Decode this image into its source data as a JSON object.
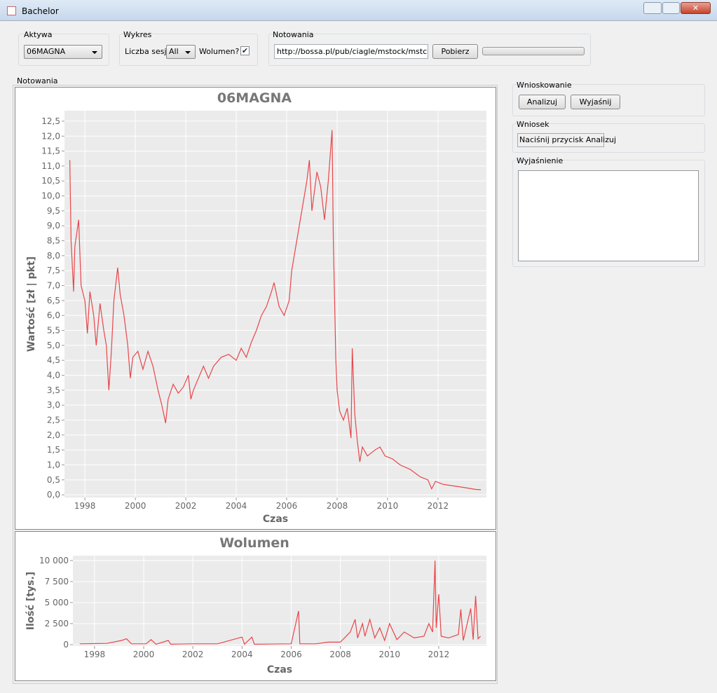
{
  "window": {
    "title": "Bachelor"
  },
  "aktywa": {
    "label": "Aktywa",
    "selected": "06MAGNA"
  },
  "wykres": {
    "label": "Wykres",
    "sessions_label": "Liczba sesji",
    "sessions": "All",
    "volume_label": "Wolumen?",
    "volume_checked": true
  },
  "notowania": {
    "label": "Notowania",
    "url": "http://bossa.pl/pub/ciagle/mstock/mstcgl.zip",
    "button": "Pobierz"
  },
  "chart_panel": {
    "label": "Notowania"
  },
  "wnioskowanie": {
    "label": "Wnioskowanie",
    "analyze": "Analizuj",
    "explain": "Wyjaśnij"
  },
  "wniosek": {
    "label": "Wniosek",
    "text": "Naciśnij przycisk Analizuj"
  },
  "wyjasnienie": {
    "label": "Wyjaśnienie"
  },
  "chart_data": [
    {
      "type": "line",
      "title": "06MAGNA",
      "x_label": "Czas",
      "y_label": "Wartość [zł | pkt]",
      "color": "#e8464a",
      "grid": true,
      "x": [
        1997.4,
        1997.45,
        1997.55,
        1997.6,
        1997.75,
        1997.85,
        1998.0,
        1998.1,
        1998.2,
        1998.35,
        1998.45,
        1998.6,
        1998.75,
        1998.85,
        1998.95,
        1999.05,
        1999.15,
        1999.3,
        1999.4,
        1999.55,
        1999.7,
        1999.8,
        1999.9,
        2000.1,
        2000.3,
        2000.5,
        2000.7,
        2000.9,
        2001.05,
        2001.2,
        2001.3,
        2001.5,
        2001.7,
        2001.9,
        2002.1,
        2002.2,
        2002.3,
        2002.5,
        2002.7,
        2002.9,
        2003.1,
        2003.4,
        2003.7,
        2004.0,
        2004.2,
        2004.4,
        2004.6,
        2004.8,
        2005.0,
        2005.2,
        2005.4,
        2005.5,
        2005.7,
        2005.9,
        2006.1,
        2006.2,
        2006.4,
        2006.6,
        2006.8,
        2006.9,
        2007.0,
        2007.2,
        2007.35,
        2007.5,
        2007.65,
        2007.8,
        2007.85,
        2007.95,
        2008.0,
        2008.1,
        2008.25,
        2008.4,
        2008.55,
        2008.6,
        2008.7,
        2008.8,
        2008.9,
        2009.0,
        2009.2,
        2009.5,
        2009.7,
        2009.9,
        2010.2,
        2010.5,
        2010.9,
        2011.3,
        2011.6,
        2011.75,
        2011.9,
        2012.2,
        2012.6,
        2013.0,
        2013.5,
        2013.7
      ],
      "values": [
        11.2,
        8.5,
        6.8,
        8.3,
        9.2,
        7.0,
        6.5,
        5.4,
        6.8,
        6.0,
        5.0,
        6.4,
        5.5,
        5.0,
        3.5,
        4.8,
        6.5,
        7.6,
        6.7,
        6.0,
        5.0,
        3.9,
        4.6,
        4.8,
        4.2,
        4.8,
        4.3,
        3.5,
        3.0,
        2.4,
        3.2,
        3.7,
        3.4,
        3.6,
        4.0,
        3.2,
        3.5,
        3.9,
        4.3,
        3.9,
        4.3,
        4.6,
        4.7,
        4.5,
        4.9,
        4.6,
        5.1,
        5.5,
        6.0,
        6.3,
        6.8,
        7.1,
        6.3,
        6.0,
        6.5,
        7.5,
        8.5,
        9.5,
        10.5,
        11.2,
        9.5,
        10.8,
        10.3,
        9.2,
        10.5,
        12.2,
        8.5,
        4.5,
        3.5,
        2.8,
        2.5,
        2.9,
        1.9,
        4.9,
        2.7,
        1.8,
        1.1,
        1.6,
        1.3,
        1.5,
        1.6,
        1.3,
        1.2,
        1.0,
        0.85,
        0.6,
        0.5,
        0.2,
        0.45,
        0.35,
        0.3,
        0.25,
        0.18,
        0.17
      ],
      "xlim": [
        1997.19,
        2013.92
      ],
      "ylim": [
        -0.09,
        12.85
      ],
      "xticks": [
        1998,
        2000,
        2002,
        2004,
        2006,
        2008,
        2010,
        2012
      ],
      "yticks": [
        {
          "value": 0,
          "label": "0,0"
        },
        {
          "value": 0.5,
          "label": "0,5"
        },
        {
          "value": 1,
          "label": "1,0"
        },
        {
          "value": 1.5,
          "label": "1,5"
        },
        {
          "value": 2,
          "label": "2,0"
        },
        {
          "value": 2.5,
          "label": "2,5"
        },
        {
          "value": 3,
          "label": "3,0"
        },
        {
          "value": 3.5,
          "label": "3,5"
        },
        {
          "value": 4,
          "label": "4,0"
        },
        {
          "value": 4.5,
          "label": "4,5"
        },
        {
          "value": 5,
          "label": "5,0"
        },
        {
          "value": 5.5,
          "label": "5,5"
        },
        {
          "value": 6,
          "label": "6,0"
        },
        {
          "value": 6.5,
          "label": "6,5"
        },
        {
          "value": 7,
          "label": "7,0"
        },
        {
          "value": 7.5,
          "label": "7,5"
        },
        {
          "value": 8,
          "label": "8,0"
        },
        {
          "value": 8.5,
          "label": "8,5"
        },
        {
          "value": 9,
          "label": "9,0"
        },
        {
          "value": 9.5,
          "label": "9,5"
        },
        {
          "value": 10,
          "label": "10,0"
        },
        {
          "value": 10.5,
          "label": "10,5"
        },
        {
          "value": 11,
          "label": "11,0"
        },
        {
          "value": 11.5,
          "label": "11,5"
        },
        {
          "value": 12,
          "label": "12,0"
        },
        {
          "value": 12.5,
          "label": "12,5"
        }
      ]
    },
    {
      "type": "line",
      "title": "Wolumen",
      "x_label": "Czas",
      "y_label": "Ilość [tys.]",
      "color": "#e8464a",
      "grid": true,
      "x": [
        1997.4,
        1998.5,
        1999.1,
        1999.3,
        1999.5,
        2000.1,
        2000.3,
        2000.5,
        2001.0,
        2001.1,
        2002.0,
        2003.0,
        2004.0,
        2004.1,
        2004.4,
        2004.5,
        2006.0,
        2006.3,
        2006.35,
        2007.0,
        2007.5,
        2008.0,
        2008.4,
        2008.6,
        2008.7,
        2008.9,
        2009.0,
        2009.2,
        2009.4,
        2009.6,
        2009.8,
        2010.0,
        2010.3,
        2010.6,
        2011.0,
        2011.4,
        2011.6,
        2011.75,
        2011.85,
        2011.9,
        2012.0,
        2012.1,
        2012.4,
        2012.8,
        2012.9,
        2013.0,
        2013.3,
        2013.4,
        2013.5,
        2013.6,
        2013.7
      ],
      "values": [
        100,
        150,
        500,
        700,
        100,
        100,
        600,
        50,
        500,
        50,
        100,
        100,
        900,
        50,
        900,
        50,
        100,
        4000,
        100,
        100,
        300,
        300,
        1500,
        3000,
        800,
        2500,
        1000,
        3000,
        800,
        2000,
        500,
        2500,
        600,
        1500,
        800,
        1000,
        2500,
        1500,
        10000,
        2000,
        6000,
        1000,
        800,
        1200,
        4200,
        500,
        4300,
        600,
        5800,
        700,
        1000
      ],
      "xlim": [
        1997.12,
        2013.94
      ],
      "ylim": [
        -170,
        10580
      ],
      "xticks": [
        1998,
        2000,
        2002,
        2004,
        2006,
        2008,
        2010,
        2012
      ],
      "yticks": [
        0,
        {
          "value": 2500,
          "label": "2 500"
        },
        {
          "value": 5000,
          "label": "5 000"
        },
        {
          "value": 7500,
          "label": "7 500"
        },
        {
          "value": 10000,
          "label": "10 000"
        }
      ]
    }
  ]
}
